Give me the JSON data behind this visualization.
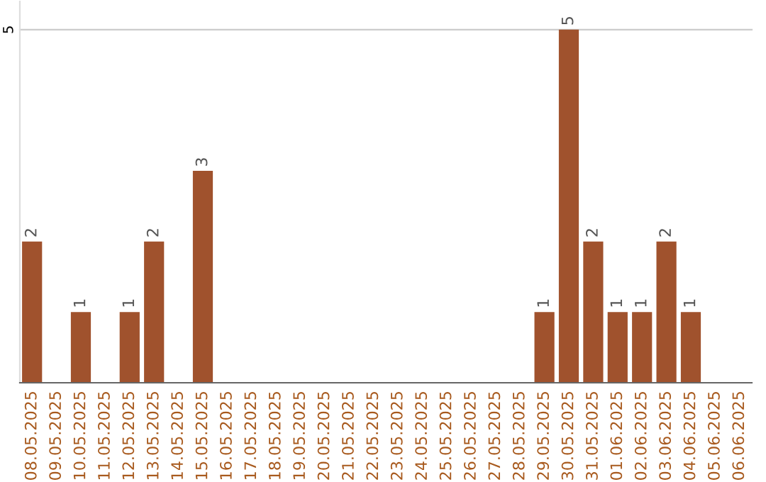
{
  "chart_data": {
    "type": "bar",
    "categories": [
      "08.05.2025",
      "09.05.2025",
      "10.05.2025",
      "11.05.2025",
      "12.05.2025",
      "13.05.2025",
      "14.05.2025",
      "15.05.2025",
      "16.05.2025",
      "17.05.2025",
      "18.05.2025",
      "19.05.2025",
      "20.05.2025",
      "21.05.2025",
      "22.05.2025",
      "23.05.2025",
      "24.05.2025",
      "25.05.2025",
      "26.05.2025",
      "27.05.2025",
      "28.05.2025",
      "29.05.2025",
      "30.05.2025",
      "31.05.2025",
      "01.06.2025",
      "02.06.2025",
      "03.06.2025",
      "04.06.2025",
      "05.06.2025",
      "06.06.2025"
    ],
    "values": [
      2,
      0,
      1,
      0,
      1,
      2,
      0,
      3,
      0,
      0,
      0,
      0,
      0,
      0,
      0,
      0,
      0,
      0,
      0,
      0,
      0,
      1,
      5,
      2,
      1,
      1,
      2,
      1,
      0,
      0
    ],
    "color": "#a0522d",
    "value_labels": [
      "2",
      null,
      "1",
      null,
      "1",
      "2",
      null,
      "3",
      null,
      null,
      null,
      null,
      null,
      null,
      null,
      null,
      null,
      null,
      null,
      null,
      null,
      "1",
      "5",
      "2",
      "1",
      "1",
      "2",
      "1",
      null,
      null
    ],
    "ylim": [
      0,
      5.4
    ],
    "yticks": [
      5
    ],
    "grid": "y",
    "data_labels": true
  }
}
